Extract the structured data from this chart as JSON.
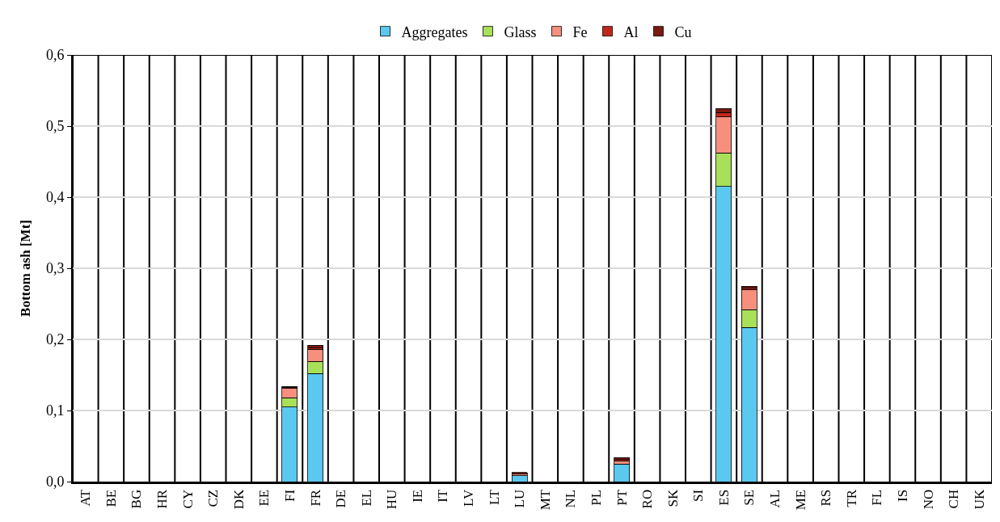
{
  "chart_data": {
    "type": "bar",
    "stacked": true,
    "ylabel": "Bottom ash [Mt]",
    "categories": [
      "AT",
      "BE",
      "BG",
      "HR",
      "CY",
      "CZ",
      "DK",
      "EE",
      "FI",
      "FR",
      "DE",
      "EL",
      "HU",
      "IE",
      "IT",
      "LV",
      "LT",
      "LU",
      "MT",
      "NL",
      "PL",
      "PT",
      "RO",
      "SK",
      "SI",
      "ES",
      "SE",
      "AL",
      "ME",
      "RS",
      "TR",
      "FL",
      "IS",
      "NO",
      "CH",
      "UK"
    ],
    "series": [
      {
        "name": "Aggregates",
        "color": "#5bc8f0",
        "values": [
          null,
          null,
          null,
          null,
          null,
          null,
          null,
          null,
          0.105,
          0.152,
          null,
          null,
          null,
          null,
          null,
          null,
          null,
          0.008,
          null,
          null,
          null,
          0.025,
          null,
          null,
          null,
          0.415,
          0.217,
          null,
          null,
          null,
          null,
          null,
          null,
          null,
          null,
          null
        ]
      },
      {
        "name": "Glass",
        "color": "#a8e05a",
        "values": [
          null,
          null,
          null,
          null,
          null,
          null,
          null,
          null,
          0.013,
          0.017,
          null,
          null,
          null,
          null,
          null,
          null,
          null,
          null,
          null,
          null,
          null,
          null,
          null,
          null,
          null,
          0.047,
          0.025,
          null,
          null,
          null,
          null,
          null,
          null,
          null,
          null,
          null
        ]
      },
      {
        "name": "Fe",
        "color": "#f6907c",
        "values": [
          null,
          null,
          null,
          null,
          null,
          null,
          null,
          null,
          0.013,
          0.017,
          null,
          null,
          null,
          null,
          null,
          null,
          null,
          0.003,
          null,
          null,
          null,
          0.004,
          null,
          null,
          null,
          0.051,
          0.028,
          null,
          null,
          null,
          null,
          null,
          null,
          null,
          null,
          null
        ]
      },
      {
        "name": "Al",
        "color": "#c0281c",
        "values": [
          null,
          null,
          null,
          null,
          null,
          null,
          null,
          null,
          0.001,
          0.002,
          null,
          null,
          null,
          null,
          null,
          null,
          null,
          null,
          null,
          null,
          null,
          0.002,
          null,
          null,
          null,
          0.006,
          0.002,
          null,
          null,
          null,
          null,
          null,
          null,
          null,
          null,
          null
        ]
      },
      {
        "name": "Cu",
        "color": "#7b1a10",
        "values": [
          null,
          null,
          null,
          null,
          null,
          null,
          null,
          null,
          0.002,
          0.004,
          null,
          null,
          null,
          null,
          null,
          null,
          null,
          0.002,
          null,
          null,
          null,
          0.003,
          null,
          null,
          null,
          0.006,
          0.003,
          null,
          null,
          null,
          null,
          null,
          null,
          null,
          null,
          null
        ]
      }
    ],
    "ylim": [
      0,
      0.6
    ],
    "yticks": [
      {
        "value": 0,
        "label": "0,0"
      },
      {
        "value": 0.1,
        "label": "0,1"
      },
      {
        "value": 0.2,
        "label": "0,2"
      },
      {
        "value": 0.3,
        "label": "0,3"
      },
      {
        "value": 0.4,
        "label": "0,4"
      },
      {
        "value": 0.5,
        "label": "0,5"
      },
      {
        "value": 0.6,
        "label": "0,6"
      }
    ],
    "grid": true,
    "legend": "top"
  }
}
